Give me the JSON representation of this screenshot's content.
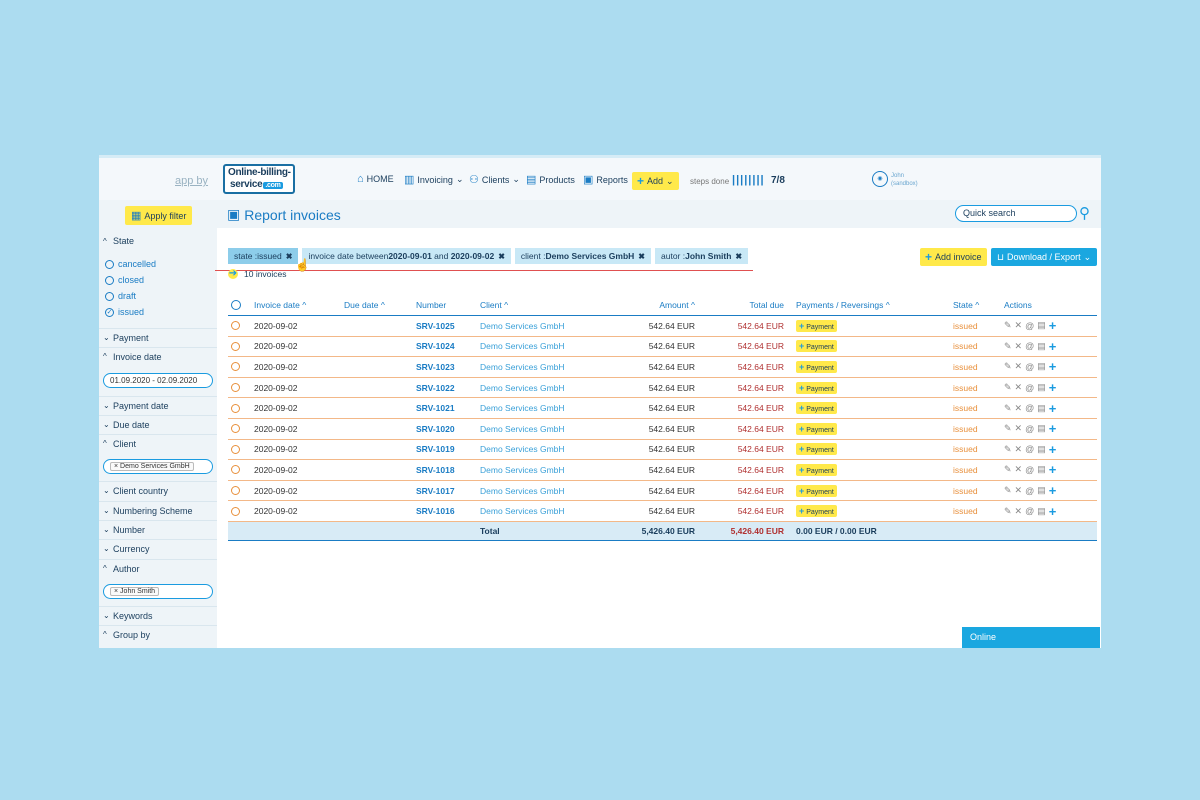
{
  "header": {
    "app_by": "app by",
    "logo_line1": "Online-billing-",
    "logo_line2": "service",
    "logo_badge": ".com",
    "nav": [
      {
        "label": "HOME",
        "icon": "house-icon"
      },
      {
        "label": "Invoicing",
        "icon": "invoice-icon"
      },
      {
        "label": "Clients",
        "icon": "clients-icon"
      },
      {
        "label": "Products",
        "icon": "products-icon"
      },
      {
        "label": "Reports",
        "icon": "reports-icon"
      }
    ],
    "add_label": "Add",
    "steps_label": "steps done",
    "steps_bars": "||||||||",
    "steps_count": "7/8",
    "user_name": "John",
    "user_env": "(sandbox)"
  },
  "sidebar": {
    "apply_filter": "Apply filter",
    "state_header": "State",
    "state_options": [
      "cancelled",
      "closed",
      "draft",
      "issued"
    ],
    "sections": {
      "payment": "Payment",
      "invoice_date": "Invoice date",
      "invoice_date_value": "01.09.2020 - 02.09.2020",
      "payment_date": "Payment date",
      "due_date": "Due date",
      "client": "Client",
      "client_tag": "Demo Services GmbH",
      "client_country": "Client country",
      "numbering_scheme": "Numbering Scheme",
      "number": "Number",
      "currency": "Currency",
      "author": "Author",
      "author_tag": "John Smith",
      "keywords": "Keywords",
      "group_by": "Group by"
    }
  },
  "main": {
    "title": "Report invoices",
    "search_placeholder": "Quick search",
    "chips": {
      "state_prefix": "state : ",
      "state_value": "issued",
      "date_prefix": "invoice date between ",
      "date_from": "2020-09-01",
      "date_mid": " and ",
      "date_to": "2020-09-02",
      "client_prefix": "client : ",
      "client_value": "Demo Services GmbH",
      "autor_prefix": "autor : ",
      "autor_value": "John Smith"
    },
    "count": "10 invoices",
    "add_invoice": "Add invoice",
    "download_export": "Download / Export"
  },
  "table": {
    "headers": {
      "invoice_date": "Invoice date",
      "due_date": "Due date",
      "number": "Number",
      "client": "Client",
      "amount": "Amount",
      "total_due": "Total due",
      "payments": "Payments / Reversings",
      "state": "State",
      "actions": "Actions"
    },
    "rows": [
      {
        "date": "2020-09-02",
        "number": "SRV-1025",
        "client": "Demo Services GmbH",
        "amount": "542.64 EUR",
        "due": "542.64 EUR",
        "state": "issued"
      },
      {
        "date": "2020-09-02",
        "number": "SRV-1024",
        "client": "Demo Services GmbH",
        "amount": "542.64 EUR",
        "due": "542.64 EUR",
        "state": "issued"
      },
      {
        "date": "2020-09-02",
        "number": "SRV-1023",
        "client": "Demo Services GmbH",
        "amount": "542.64 EUR",
        "due": "542.64 EUR",
        "state": "issued"
      },
      {
        "date": "2020-09-02",
        "number": "SRV-1022",
        "client": "Demo Services GmbH",
        "amount": "542.64 EUR",
        "due": "542.64 EUR",
        "state": "issued"
      },
      {
        "date": "2020-09-02",
        "number": "SRV-1021",
        "client": "Demo Services GmbH",
        "amount": "542.64 EUR",
        "due": "542.64 EUR",
        "state": "issued"
      },
      {
        "date": "2020-09-02",
        "number": "SRV-1020",
        "client": "Demo Services GmbH",
        "amount": "542.64 EUR",
        "due": "542.64 EUR",
        "state": "issued"
      },
      {
        "date": "2020-09-02",
        "number": "SRV-1019",
        "client": "Demo Services GmbH",
        "amount": "542.64 EUR",
        "due": "542.64 EUR",
        "state": "issued"
      },
      {
        "date": "2020-09-02",
        "number": "SRV-1018",
        "client": "Demo Services GmbH",
        "amount": "542.64 EUR",
        "due": "542.64 EUR",
        "state": "issued"
      },
      {
        "date": "2020-09-02",
        "number": "SRV-1017",
        "client": "Demo Services GmbH",
        "amount": "542.64 EUR",
        "due": "542.64 EUR",
        "state": "issued"
      },
      {
        "date": "2020-09-02",
        "number": "SRV-1016",
        "client": "Demo Services GmbH",
        "amount": "542.64 EUR",
        "due": "542.64 EUR",
        "state": "issued"
      }
    ],
    "payment_label": "Payment",
    "total_label": "Total",
    "total_amount": "5,426.40 EUR",
    "total_due": "5,426.40 EUR",
    "total_payments": "0.00 EUR / 0.00 EUR"
  },
  "chat": {
    "status": "Online"
  },
  "colors": {
    "accent": "#1a7cc4",
    "highlight": "#ffe94a",
    "issued": "#e8903c",
    "due": "#b03030",
    "background": "#acdcf0"
  }
}
